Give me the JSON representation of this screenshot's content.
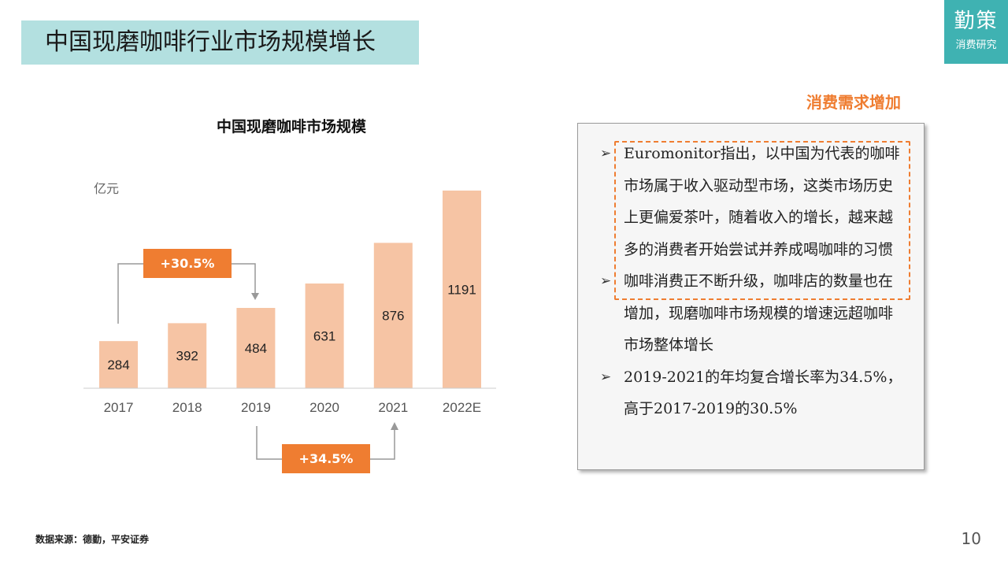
{
  "header": {
    "title": "中国现磨咖啡行业市场规模增长"
  },
  "logo": {
    "main": "勤策",
    "sub": "消费研究"
  },
  "chart": {
    "title": "中国现磨咖啡市场规模",
    "unit": "亿元",
    "bar_color": "#f6c4a4",
    "accent": "#ef7d31",
    "growth_labels": [
      {
        "text": "+30.5%",
        "from": "2017",
        "to": "2019"
      },
      {
        "text": "+34.5%",
        "from": "2019",
        "to": "2021"
      }
    ]
  },
  "chart_data": {
    "type": "bar",
    "categories": [
      "2017",
      "2018",
      "2019",
      "2020",
      "2021",
      "2022E"
    ],
    "values": [
      284,
      392,
      484,
      631,
      876,
      1191
    ],
    "ylabel": "亿元",
    "ylim": [
      0,
      1200
    ]
  },
  "panel": {
    "subtitle": "消费需求增加",
    "bullets": [
      "Euromonitor指出，以中国为代表的咖啡市场属于收入驱动型市场，这类市场历史上更偏爱茶叶，随着收入的增长，越来越多的消费者开始尝试并养成喝咖啡的习惯",
      "咖啡消费正不断升级，咖啡店的数量也在增加，现磨咖啡市场规模的增速远超咖啡市场整体增长",
      "2019-2021的年均复合增长率为34.5%，高于2017-2019的30.5%"
    ]
  },
  "footer": {
    "source": "数据来源：德勤，平安证券",
    "page": "10"
  }
}
